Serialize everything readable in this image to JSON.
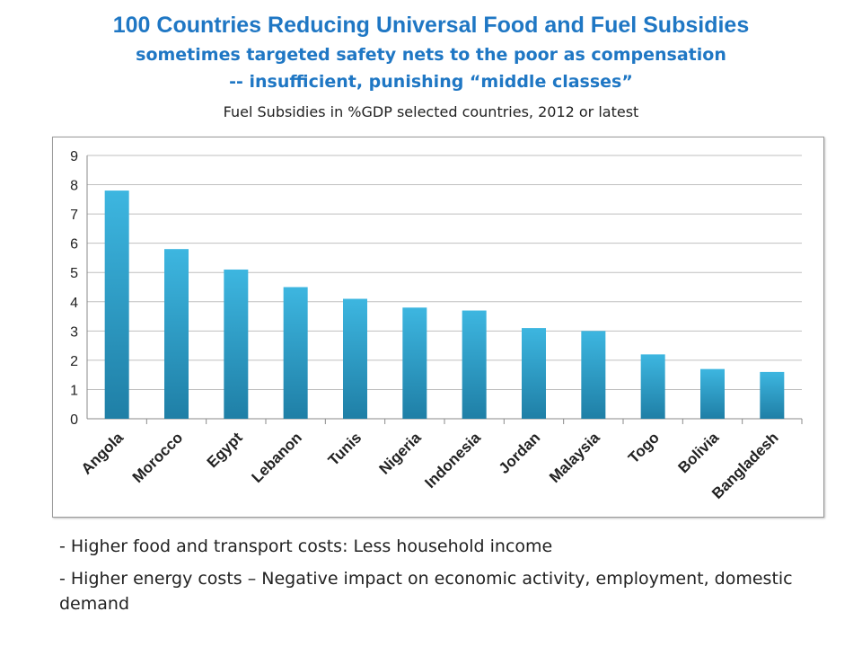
{
  "slide": {
    "title": "100 Countries Reducing Universal Food and Fuel Subsidies",
    "subtitle_line1": "sometimes targeted safety nets to the poor as compensation",
    "subtitle_line2": "-- insufficient, punishing “middle classes”",
    "chart_caption": "Fuel Subsidies in %GDP selected countries, 2012 or latest",
    "bullets": [
      "- Higher food and transport costs: Less household income",
      "- Higher energy costs – Negative impact on economic activity, employment, domestic demand"
    ]
  },
  "chart_data": {
    "type": "bar",
    "title": "Fuel Subsidies in %GDP selected countries, 2012 or latest",
    "categories": [
      "Angola",
      "Morocco",
      "Egypt",
      "Lebanon",
      "Tunis",
      "Nigeria",
      "Indonesia",
      "Jordan",
      "Malaysia",
      "Togo",
      "Bolivia",
      "Bangladesh"
    ],
    "values": [
      7.8,
      5.8,
      5.1,
      4.5,
      4.1,
      3.8,
      3.7,
      3.1,
      3.0,
      2.2,
      1.7,
      1.6
    ],
    "ylim": [
      0,
      9
    ],
    "yticks": [
      "0",
      "1",
      "2",
      "3",
      "4",
      "5",
      "6",
      "7",
      "8",
      "9"
    ],
    "grid": true,
    "legend": "none",
    "bar_color_top": "#3db6e0",
    "bar_color_bottom": "#1f7fa6"
  }
}
